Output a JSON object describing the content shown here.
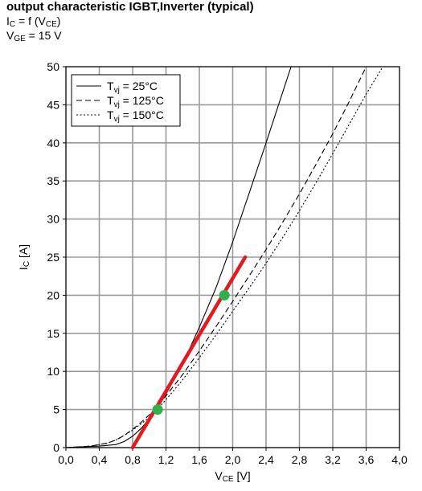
{
  "header": {
    "title": "output characteristic IGBT,Inverter (typical)",
    "line2": {
      "sym": "I",
      "sub": "C",
      "mid": " = f (V",
      "sub2": "CE",
      "end": ")"
    },
    "line3": {
      "sym": "V",
      "sub": "GE",
      "end": " = 15 V"
    }
  },
  "chart_data": {
    "type": "line",
    "xlabel": {
      "sym": "V",
      "sub": "CE",
      "unit": " [V]"
    },
    "ylabel": {
      "sym": "I",
      "sub": "C",
      "unit": " [A]"
    },
    "xlim": [
      0,
      4
    ],
    "ylim": [
      0,
      50
    ],
    "xticks": [
      "0,0",
      "0,4",
      "0,8",
      "1,2",
      "1,6",
      "2,0",
      "2,4",
      "2,8",
      "3,2",
      "3,6",
      "4,0"
    ],
    "yticks": [
      "0",
      "5",
      "10",
      "15",
      "20",
      "25",
      "30",
      "35",
      "40",
      "45",
      "50"
    ],
    "grid": true,
    "legend_position": "top-left",
    "series": [
      {
        "name": "T",
        "name_sub": "vj",
        "name_rest": " = 25°C",
        "style": "solid",
        "x": [
          0.0,
          0.4,
          0.6,
          0.7,
          0.8,
          0.9,
          1.0,
          1.1,
          1.2,
          1.4,
          1.6,
          1.8,
          2.0,
          2.2,
          2.4,
          2.7
        ],
        "y": [
          0,
          0.2,
          0.4,
          0.8,
          1.5,
          2.5,
          3.8,
          5.2,
          7.0,
          11.0,
          15.8,
          21.0,
          27.0,
          33.5,
          40.0,
          50.0
        ]
      },
      {
        "name": "T",
        "name_sub": "vj",
        "name_rest": " = 125°C",
        "style": "dashed",
        "x": [
          0.0,
          0.3,
          0.5,
          0.6,
          0.7,
          0.8,
          0.9,
          1.0,
          1.1,
          1.2,
          1.4,
          1.6,
          1.8,
          2.0,
          2.2,
          2.4,
          2.6,
          2.8,
          3.0,
          3.2,
          3.4,
          3.6
        ],
        "y": [
          0,
          0.2,
          0.6,
          1.0,
          1.6,
          2.4,
          3.3,
          4.3,
          5.5,
          6.8,
          9.6,
          12.7,
          15.9,
          19.2,
          22.6,
          26.0,
          29.6,
          33.3,
          37.2,
          41.2,
          45.5,
          50.0
        ]
      },
      {
        "name": "T",
        "name_sub": "vj",
        "name_rest": " = 150°C",
        "style": "dotted",
        "x": [
          0.0,
          0.3,
          0.5,
          0.6,
          0.7,
          0.8,
          0.9,
          1.0,
          1.1,
          1.2,
          1.4,
          1.6,
          1.8,
          2.0,
          2.2,
          2.4,
          2.6,
          2.8,
          3.0,
          3.2,
          3.4,
          3.6,
          3.8
        ],
        "y": [
          0,
          0.2,
          0.6,
          1.0,
          1.6,
          2.3,
          3.1,
          4.0,
          5.1,
          6.3,
          8.9,
          11.8,
          14.8,
          17.9,
          21.0,
          24.2,
          27.6,
          31.1,
          34.8,
          38.6,
          42.5,
          46.4,
          50.0
        ]
      }
    ],
    "annotation_line": {
      "color": "#e11b22",
      "x": [
        0.8,
        2.15
      ],
      "y": [
        0,
        25
      ]
    },
    "annotation_points": {
      "color": "#2fb14c",
      "points": [
        {
          "x": 1.1,
          "y": 5
        },
        {
          "x": 1.9,
          "y": 20
        }
      ]
    }
  }
}
